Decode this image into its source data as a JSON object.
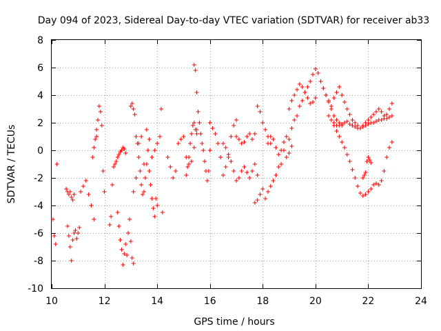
{
  "chart_data": {
    "type": "scatter",
    "title": "Day 094 of 2023, Sidereal Day-to-day VTEC variation (SDTVAR) for receiver ab33",
    "xlabel": "GPS time / hours",
    "ylabel": "SDTVAR / TECUs",
    "xlim": [
      10,
      24
    ],
    "ylim": [
      -10,
      8
    ],
    "xticks": [
      10,
      12,
      14,
      16,
      18,
      20,
      22,
      24
    ],
    "yticks": [
      -10,
      -8,
      -6,
      -4,
      -2,
      0,
      2,
      4,
      6,
      8
    ],
    "xtick_labels": [
      "10",
      "12",
      "14",
      "16",
      "18",
      "20",
      "22",
      "24"
    ],
    "ytick_labels": [
      "-10",
      "-8",
      "-6",
      "-4",
      "-2",
      "0",
      "2",
      "4",
      "6",
      "8"
    ],
    "grid": true,
    "marker": "+",
    "color": "#ff0000",
    "series": [
      {
        "name": "t10_0",
        "x": [
          10.05,
          10.1,
          10.15
        ],
        "y": [
          -5.0,
          -6.2,
          -6.8
        ]
      },
      {
        "name": "t10_2",
        "x": [
          10.2
        ],
        "y": [
          -1.0
        ]
      },
      {
        "name": "t10_5",
        "x": [
          10.55,
          10.6,
          10.65,
          10.7,
          10.75,
          10.8,
          10.85
        ],
        "y": [
          -2.8,
          -3.0,
          -3.2,
          -3.0,
          -3.4,
          -3.6,
          -3.2
        ]
      },
      {
        "name": "t10_6",
        "x": [
          10.6,
          10.65,
          10.7,
          10.75,
          10.8,
          10.85,
          10.9,
          10.95,
          11.0,
          11.05
        ],
        "y": [
          -5.5,
          -6.2,
          -7.0,
          -8.0,
          -6.5,
          -6.0,
          -5.8,
          -6.4,
          -6.0,
          -5.6
        ]
      },
      {
        "name": "t11_1",
        "x": [
          11.1,
          11.2,
          11.3,
          11.4,
          11.5,
          11.6
        ],
        "y": [
          -3.0,
          -2.6,
          -2.2,
          -3.2,
          -4.0,
          -5.0
        ]
      },
      {
        "name": "t11_7",
        "x": [
          11.7,
          11.75,
          11.8,
          11.85,
          11.9,
          11.95,
          12.0
        ],
        "y": [
          1.5,
          2.2,
          3.2,
          2.8,
          1.8,
          -1.5,
          -3.0
        ]
      },
      {
        "name": "t11_6",
        "x": [
          11.55,
          11.6,
          11.65,
          11.7
        ],
        "y": [
          -0.5,
          0.2,
          0.8,
          1.0
        ]
      },
      {
        "name": "t12_2",
        "x": [
          12.2,
          12.25,
          12.3,
          12.35,
          12.4,
          12.45,
          12.5,
          12.55,
          12.6,
          12.65,
          12.7,
          12.75,
          12.8
        ],
        "y": [
          -5.4,
          -4.8,
          -2.5,
          -1.2,
          -1.0,
          -0.8,
          -0.5,
          -0.3,
          -0.1,
          0.0,
          0.2,
          0.1,
          -0.2
        ]
      },
      {
        "name": "t12_5",
        "x": [
          12.5,
          12.55,
          12.6,
          12.65,
          12.7,
          12.75,
          12.8,
          12.85,
          12.9,
          12.95,
          13.0,
          13.05,
          13.1
        ],
        "y": [
          -4.5,
          -5.5,
          -6.5,
          -7.2,
          -8.3,
          -7.5,
          -6.8,
          -7.6,
          -6.0,
          -5.0,
          -6.6,
          -7.8,
          -8.2
        ]
      },
      {
        "name": "t13_0",
        "x": [
          13.0,
          13.05,
          13.1,
          13.15,
          13.2,
          13.25,
          13.3,
          13.35,
          13.4,
          13.45,
          13.5,
          13.55,
          13.6,
          13.65,
          13.7,
          13.75,
          13.8,
          13.85,
          13.9,
          13.95,
          14.0
        ],
        "y": [
          3.2,
          3.4,
          3.0,
          2.6,
          1.0,
          0.5,
          -0.5,
          -1.5,
          -2.5,
          -3.2,
          -3.0,
          -2.0,
          -1.0,
          0.0,
          -1.5,
          -2.5,
          -3.5,
          -4.2,
          -4.8,
          -3.5,
          -4.0
        ]
      },
      {
        "name": "t13_3",
        "x": [
          13.1,
          13.2,
          13.3,
          13.4,
          13.5,
          13.6,
          13.7,
          13.8,
          13.9,
          14.0,
          14.1,
          14.15,
          14.2
        ],
        "y": [
          -3.0,
          -2.0,
          0.5,
          1.0,
          -1.0,
          1.5,
          0.8,
          -0.5,
          0.0,
          0.5,
          1.0,
          3.0,
          -4.5
        ]
      },
      {
        "name": "t14_4",
        "x": [
          14.4,
          14.5,
          14.6,
          14.7,
          14.8,
          14.9,
          15.0,
          15.1,
          15.2,
          15.3,
          15.4,
          15.5
        ],
        "y": [
          -0.5,
          -1.2,
          -2.0,
          -1.5,
          0.5,
          0.8,
          1.0,
          -0.5,
          -1.0,
          -0.8,
          0.2,
          1.5
        ]
      },
      {
        "name": "t15_1",
        "x": [
          15.1,
          15.15,
          15.2,
          15.25,
          15.3,
          15.35,
          15.4,
          15.45,
          15.5
        ],
        "y": [
          -1.8,
          -1.2,
          -0.5,
          0.5,
          1.2,
          1.8,
          2.0,
          1.5,
          1.2
        ]
      },
      {
        "name": "t15_4",
        "x": [
          15.4,
          15.45,
          15.5,
          15.55,
          15.6,
          15.65,
          15.7,
          15.75,
          15.8,
          15.85,
          15.9,
          15.95,
          16.0
        ],
        "y": [
          6.2,
          5.8,
          4.2,
          2.8,
          2.0,
          1.2,
          0.5,
          0.0,
          -0.8,
          -1.5,
          -2.2,
          -1.5,
          0.0
        ]
      },
      {
        "name": "t16_0",
        "x": [
          16.0,
          16.1,
          16.2,
          16.3,
          16.4,
          16.5,
          16.6,
          16.7,
          16.8,
          16.9,
          17.0
        ],
        "y": [
          2.0,
          1.6,
          1.2,
          0.5,
          -0.5,
          -1.8,
          -1.2,
          -0.5,
          1.0,
          1.8,
          2.2
        ]
      },
      {
        "name": "t16_5",
        "x": [
          16.5,
          16.6,
          16.7,
          16.8,
          16.9,
          17.0,
          17.1,
          17.2,
          17.3,
          17.4,
          17.5,
          17.6,
          17.7,
          17.8
        ],
        "y": [
          0.5,
          0.2,
          -0.3,
          -0.8,
          -1.5,
          -2.2,
          -2.0,
          -1.5,
          -1.2,
          -1.6,
          -2.0,
          -1.5,
          -1.0,
          -1.8
        ]
      },
      {
        "name": "t17_0",
        "x": [
          17.0,
          17.1,
          17.2,
          17.3,
          17.4,
          17.5,
          17.6,
          17.7,
          17.8,
          17.9,
          18.0,
          18.1,
          18.2,
          18.3
        ],
        "y": [
          1.0,
          0.8,
          0.5,
          0.6,
          1.0,
          1.2,
          0.8,
          1.2,
          3.2,
          2.8,
          2.0,
          1.5,
          1.0,
          0.5
        ]
      },
      {
        "name": "t17_7",
        "x": [
          17.7,
          17.8,
          17.9,
          18.0,
          18.1,
          18.2,
          18.3,
          18.4,
          18.5,
          18.6,
          18.7,
          18.8,
          18.9,
          19.0,
          19.1
        ],
        "y": [
          -3.8,
          -3.6,
          -3.2,
          -2.8,
          -3.5,
          -3.0,
          -2.6,
          -2.2,
          -1.8,
          -1.2,
          -1.0,
          0.0,
          -0.5,
          -0.2,
          0.3
        ]
      },
      {
        "name": "t18_2",
        "x": [
          18.2,
          18.3,
          18.4,
          18.5,
          18.6,
          18.7,
          18.8,
          18.9,
          19.0,
          19.1,
          19.2,
          19.3,
          19.4,
          19.5,
          19.6,
          19.7,
          19.8,
          19.9,
          20.0,
          20.1,
          20.2,
          20.3,
          20.4,
          20.5,
          20.6,
          20.7,
          20.8,
          20.9,
          21.0
        ],
        "y": [
          0.5,
          1.0,
          0.8,
          0.2,
          -0.3,
          0.0,
          0.6,
          1.0,
          0.8,
          1.6,
          2.2,
          2.5,
          3.2,
          3.6,
          4.2,
          4.6,
          5.0,
          5.5,
          5.9,
          5.6,
          5.0,
          4.5,
          4.0,
          3.5,
          3.0,
          2.5,
          2.2,
          2.0,
          1.8
        ]
      },
      {
        "name": "t19_0",
        "x": [
          19.0,
          19.1,
          19.2,
          19.3,
          19.4,
          19.5,
          19.6,
          19.7,
          19.8,
          19.9,
          20.0
        ],
        "y": [
          3.0,
          3.6,
          4.0,
          4.4,
          4.8,
          4.6,
          4.2,
          3.8,
          3.4,
          3.5,
          3.8
        ]
      },
      {
        "name": "t20_3",
        "x": [
          20.3,
          20.4,
          20.5,
          20.6,
          20.7,
          20.8,
          20.9,
          21.0,
          21.1,
          21.2,
          21.3,
          21.4,
          21.5,
          21.6,
          21.7,
          21.8,
          21.9,
          22.0,
          22.1,
          22.2,
          22.3,
          22.4,
          22.5,
          22.6,
          22.7,
          22.8,
          22.9
        ],
        "y": [
          4.5,
          4.0,
          3.6,
          3.2,
          3.8,
          4.2,
          4.6,
          4.0,
          3.5,
          3.0,
          2.6,
          2.2,
          2.0,
          1.8,
          1.6,
          1.8,
          2.0,
          2.2,
          2.4,
          2.6,
          2.8,
          3.0,
          2.8,
          2.5,
          2.6,
          3.0,
          3.4
        ]
      },
      {
        "name": "t20_5",
        "x": [
          20.5,
          20.6,
          20.7,
          20.8,
          20.9,
          21.0,
          21.1,
          21.2,
          21.3,
          21.4,
          21.5,
          21.6,
          21.7,
          21.8,
          21.9,
          22.0,
          22.1,
          22.2,
          22.3,
          22.4,
          22.5,
          22.6,
          22.7,
          22.8,
          22.9
        ],
        "y": [
          2.5,
          2.2,
          2.0,
          1.8,
          1.8,
          1.9,
          2.0,
          2.1,
          1.9,
          1.8,
          1.7,
          1.6,
          1.6,
          1.7,
          1.8,
          1.9,
          2.0,
          2.0,
          2.1,
          2.2,
          2.2,
          2.3,
          2.3,
          2.4,
          2.5
        ]
      },
      {
        "name": "t20_7",
        "x": [
          20.7,
          20.8,
          20.9,
          21.0,
          21.1,
          21.2,
          21.3,
          21.4,
          21.5,
          21.6,
          21.7,
          21.8,
          21.9,
          22.0,
          22.1,
          22.2,
          22.3,
          22.4,
          22.5,
          22.6,
          22.7,
          22.8,
          22.9
        ],
        "y": [
          1.8,
          1.4,
          1.0,
          0.6,
          0.2,
          -0.3,
          -0.8,
          -1.4,
          -2.0,
          -2.6,
          -3.1,
          -3.3,
          -3.2,
          -3.0,
          -2.8,
          -2.5,
          -2.4,
          -2.5,
          -2.2,
          -1.5,
          -0.5,
          0.2,
          0.6
        ]
      },
      {
        "name": "t21_8",
        "x": [
          21.8,
          21.85,
          21.9,
          21.95,
          22.0,
          22.05,
          22.1
        ],
        "y": [
          -2.0,
          -1.8,
          -1.6,
          -0.8,
          -0.5,
          -0.7,
          -0.9
        ]
      }
    ]
  }
}
